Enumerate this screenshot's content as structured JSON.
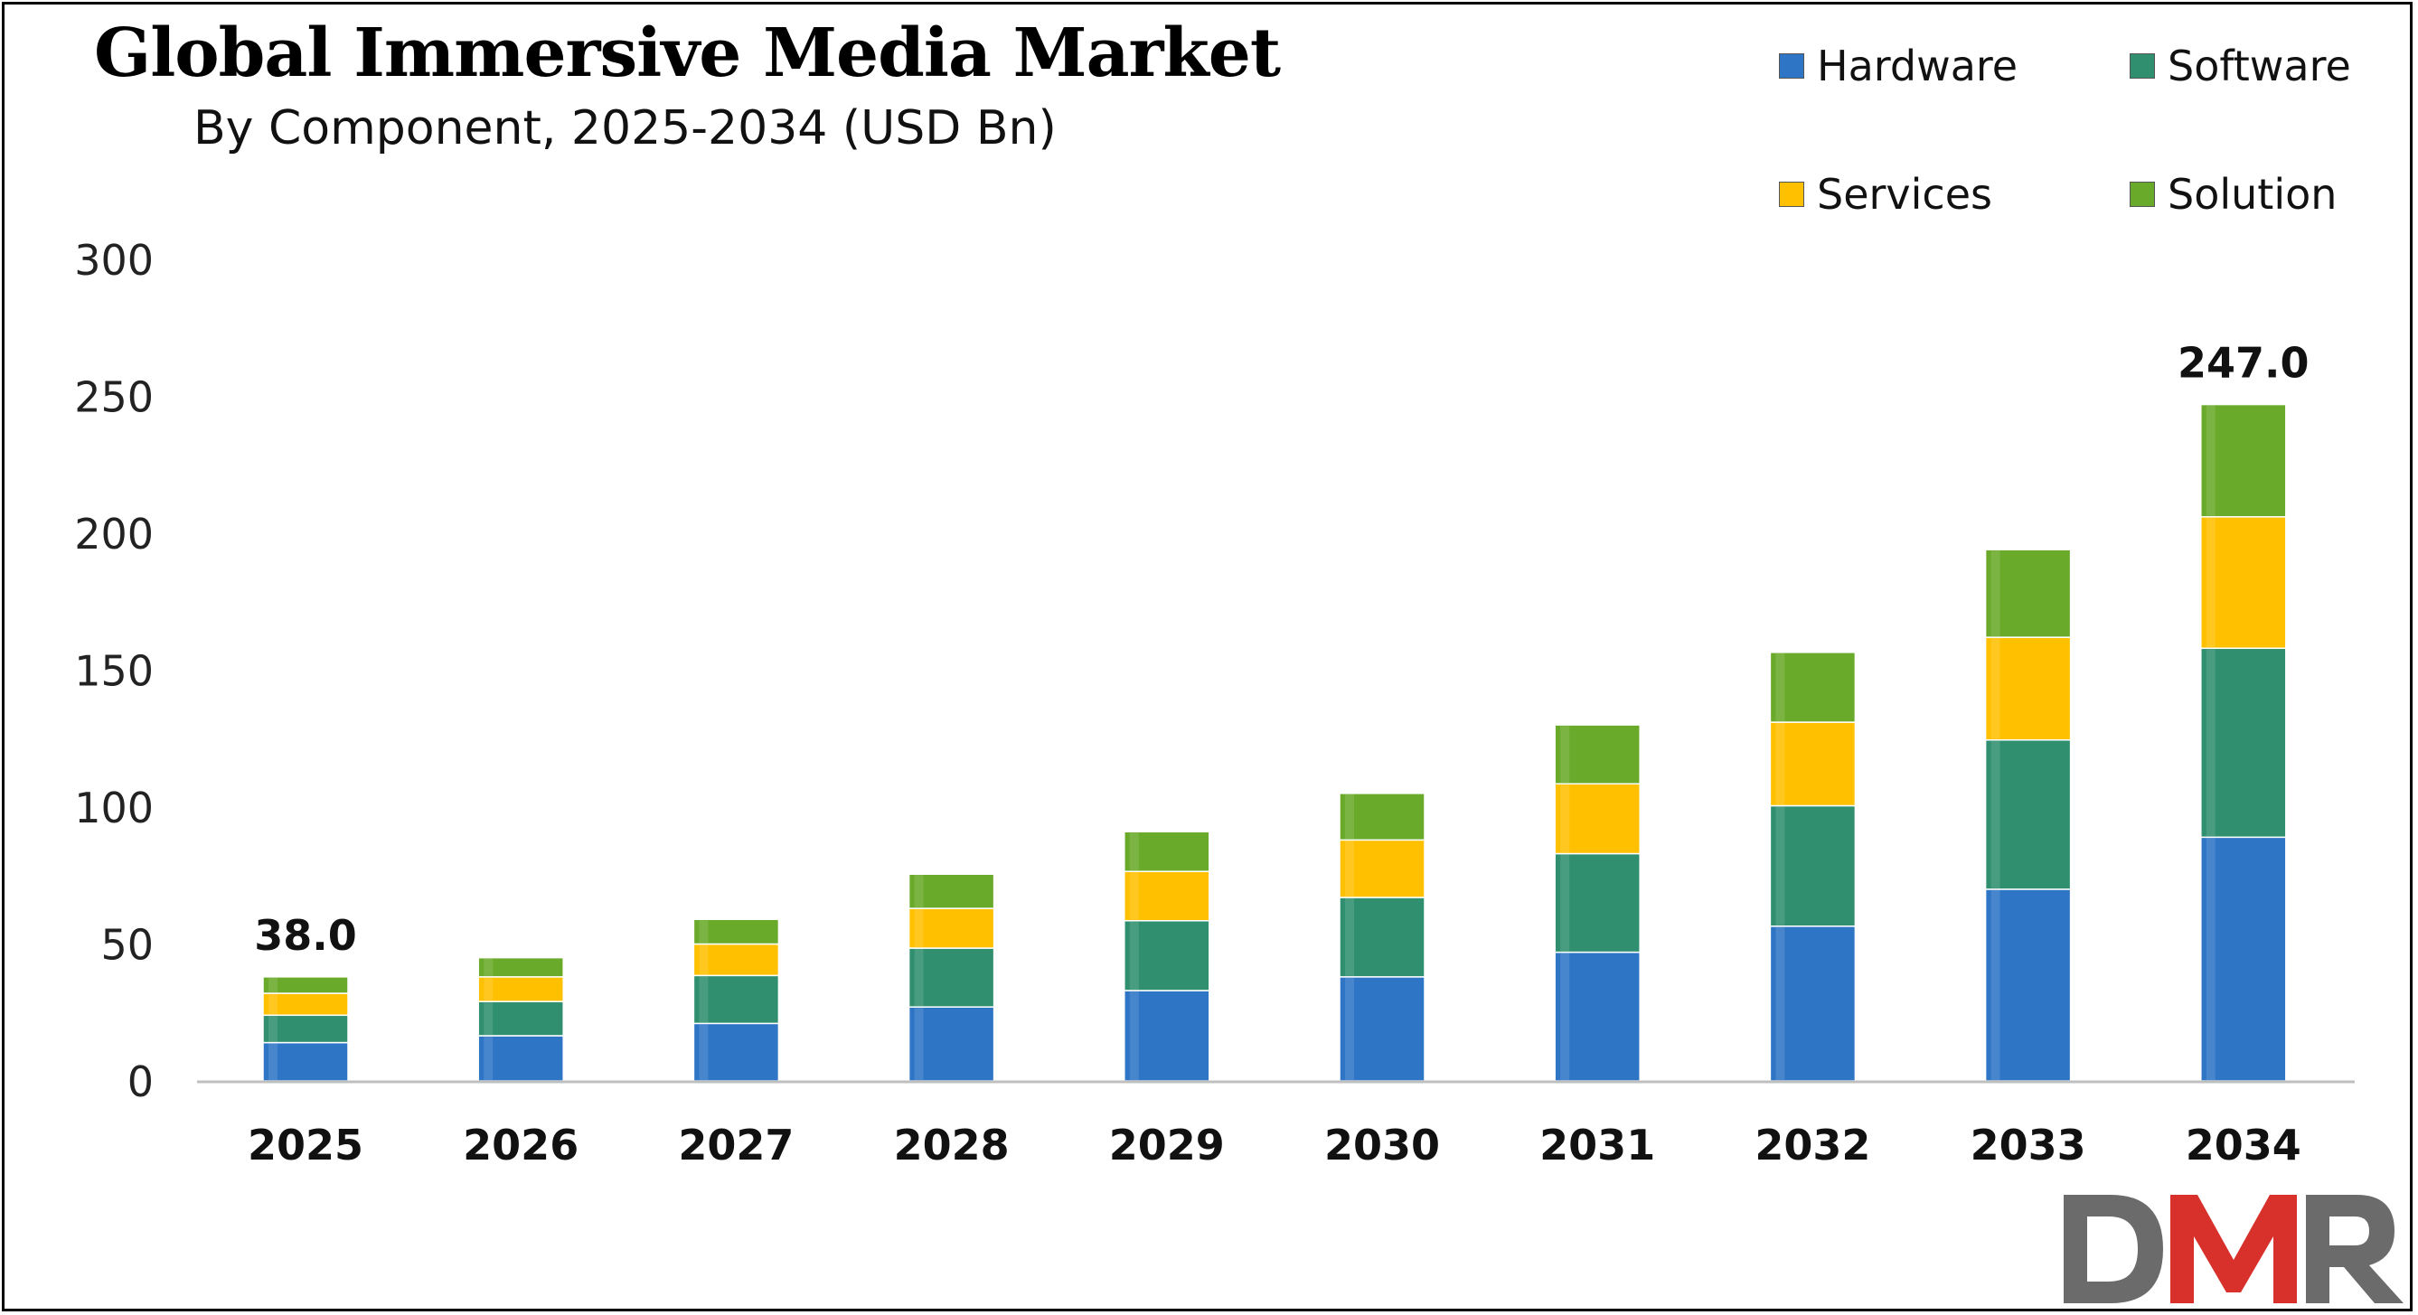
{
  "header": {
    "title": "Global Immersive Media Market",
    "subtitle": "By Component, 2025-2034 (USD Bn)"
  },
  "legend": [
    {
      "label": "Hardware",
      "color": "#2e75c6"
    },
    {
      "label": "Software",
      "color": "#2f8f6e"
    },
    {
      "label": "Services",
      "color": "#ffc000"
    },
    {
      "label": "Solution",
      "color": "#6aaa2a"
    }
  ],
  "logo": {
    "text": "DMR"
  },
  "chart_data": {
    "type": "bar",
    "stacked": true,
    "title": "Global Immersive Media Market",
    "subtitle": "By Component, 2025-2034 (USD Bn)",
    "xlabel": "",
    "ylabel": "",
    "ylim": [
      0,
      300
    ],
    "yticks": [
      0,
      50,
      100,
      150,
      200,
      250,
      300
    ],
    "categories": [
      "2025",
      "2026",
      "2027",
      "2028",
      "2029",
      "2030",
      "2031",
      "2032",
      "2033",
      "2034"
    ],
    "series": [
      {
        "name": "Hardware",
        "color": "#2e75c6",
        "values": [
          14,
          16.5,
          21,
          27,
          33,
          38,
          47,
          56.5,
          70,
          89
        ]
      },
      {
        "name": "Software",
        "color": "#2f8f6e",
        "values": [
          10,
          12.5,
          17.5,
          21.5,
          25.5,
          29,
          36,
          44,
          54.5,
          69
        ]
      },
      {
        "name": "Services",
        "color": "#ffc000",
        "values": [
          8,
          9,
          11.5,
          14.5,
          18,
          21,
          25.5,
          30.5,
          37.5,
          48
        ]
      },
      {
        "name": "Solution",
        "color": "#6aaa2a",
        "values": [
          6,
          7,
          9,
          12.5,
          14.5,
          17,
          21.5,
          25.5,
          32,
          41
        ]
      }
    ],
    "totals": [
      38,
      45,
      59,
      75.5,
      91,
      105,
      130,
      156.5,
      194,
      247
    ],
    "data_labels": [
      {
        "category": "2025",
        "text": "38.0"
      },
      {
        "category": "2034",
        "text": "247.0"
      }
    ],
    "legend_position": "top-right",
    "grid": false
  }
}
